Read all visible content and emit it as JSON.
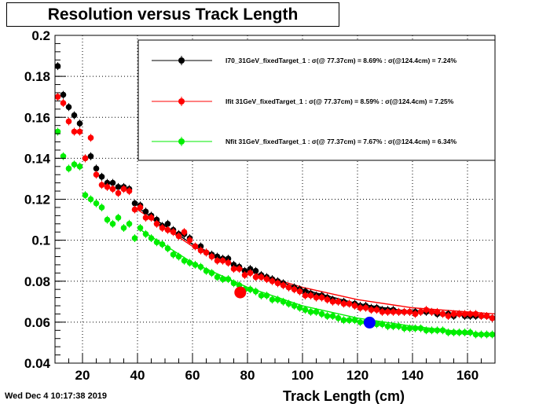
{
  "page": {
    "timestamp": "Wed Dec  4 10:17:38 2019"
  },
  "chart_data": {
    "type": "scatter",
    "title": "Resolution versus Track Length",
    "xlabel": "Track Length (cm)",
    "ylabel": "",
    "xlim": [
      10,
      170
    ],
    "ylim": [
      0.04,
      0.2
    ],
    "xticks": [
      20,
      40,
      60,
      80,
      100,
      120,
      140,
      160
    ],
    "yticks": [
      0.04,
      0.06,
      0.08,
      0.1,
      0.12,
      0.14,
      0.16,
      0.18,
      0.2
    ],
    "grid": true,
    "legend_position": "top-right",
    "series": [
      {
        "name": "I70_31GeV_fixedTarget_1 : σ(@ 77.37cm) =  8.69% : σ(@124.4cm) =  7.24%",
        "color": "#000000",
        "x": [
          11,
          13,
          15,
          17,
          19,
          21,
          23,
          25,
          27,
          29,
          31,
          33,
          35,
          37,
          39,
          41,
          43,
          45,
          47,
          49,
          51,
          53,
          55,
          57,
          59,
          61,
          63,
          65,
          67,
          69,
          71,
          73,
          75,
          77,
          79,
          81,
          83,
          85,
          87,
          89,
          91,
          93,
          95,
          97,
          99,
          101,
          103,
          105,
          107,
          109,
          111,
          113,
          115,
          117,
          119,
          121,
          123,
          125,
          127,
          129,
          131,
          133,
          135,
          137,
          139,
          141,
          143,
          145,
          147,
          149,
          151,
          153,
          155,
          157,
          159,
          161,
          163,
          165,
          167,
          169
        ],
        "y": [
          0.185,
          0.171,
          0.165,
          0.161,
          0.157,
          0.14,
          0.141,
          0.135,
          0.131,
          0.128,
          0.128,
          0.126,
          0.126,
          0.125,
          0.118,
          0.117,
          0.114,
          0.112,
          0.11,
          0.107,
          0.108,
          0.105,
          0.103,
          0.103,
          0.101,
          0.097,
          0.097,
          0.094,
          0.093,
          0.092,
          0.091,
          0.091,
          0.088,
          0.087,
          0.085,
          0.086,
          0.085,
          0.083,
          0.082,
          0.081,
          0.08,
          0.079,
          0.077,
          0.077,
          0.076,
          0.075,
          0.074,
          0.073,
          0.073,
          0.072,
          0.071,
          0.07,
          0.07,
          0.069,
          0.069,
          0.068,
          0.068,
          0.067,
          0.067,
          0.066,
          0.066,
          0.066,
          0.065,
          0.065,
          0.065,
          0.065,
          0.065,
          0.065,
          0.065,
          0.064,
          0.064,
          0.064,
          0.063,
          0.064,
          0.063,
          0.063,
          0.063,
          0.063,
          0.063,
          0.062
        ]
      },
      {
        "name": "Ifit 31GeV_fixedTarget_1 : σ(@ 77.37cm) =  8.59% : σ(@124.4cm) =  7.25%",
        "color": "#ff0000",
        "x": [
          11,
          13,
          15,
          17,
          19,
          21,
          23,
          25,
          27,
          29,
          31,
          33,
          35,
          37,
          39,
          41,
          43,
          45,
          47,
          49,
          51,
          53,
          55,
          57,
          59,
          61,
          63,
          65,
          67,
          69,
          71,
          73,
          75,
          77,
          79,
          81,
          83,
          85,
          87,
          89,
          91,
          93,
          95,
          97,
          99,
          101,
          103,
          105,
          107,
          109,
          111,
          113,
          115,
          117,
          119,
          121,
          123,
          125,
          127,
          129,
          131,
          133,
          135,
          137,
          139,
          141,
          143,
          145,
          147,
          149,
          151,
          153,
          155,
          157,
          159,
          161,
          163,
          165,
          167,
          169
        ],
        "y": [
          0.17,
          0.167,
          0.158,
          0.153,
          0.153,
          0.14,
          0.15,
          0.132,
          0.127,
          0.126,
          0.125,
          0.123,
          0.125,
          0.124,
          0.115,
          0.116,
          0.111,
          0.111,
          0.108,
          0.106,
          0.105,
          0.104,
          0.102,
          0.104,
          0.1,
          0.097,
          0.095,
          0.094,
          0.092,
          0.09,
          0.09,
          0.089,
          0.086,
          0.086,
          0.083,
          0.084,
          0.082,
          0.082,
          0.081,
          0.08,
          0.079,
          0.078,
          0.077,
          0.076,
          0.075,
          0.073,
          0.073,
          0.072,
          0.072,
          0.071,
          0.07,
          0.07,
          0.069,
          0.069,
          0.068,
          0.067,
          0.067,
          0.066,
          0.066,
          0.065,
          0.065,
          0.065,
          0.065,
          0.065,
          0.065,
          0.064,
          0.065,
          0.066,
          0.065,
          0.065,
          0.064,
          0.063,
          0.064,
          0.064,
          0.064,
          0.064,
          0.064,
          0.063,
          0.063,
          0.062
        ]
      },
      {
        "name": "Nfit 31GeV_fixedTarget_1 : σ(@ 77.37cm) =  7.67% : σ(@124.4cm) =  6.34%",
        "color": "#00ee00",
        "x": [
          11,
          13,
          15,
          17,
          19,
          21,
          23,
          25,
          27,
          29,
          31,
          33,
          35,
          37,
          39,
          41,
          43,
          45,
          47,
          49,
          51,
          53,
          55,
          57,
          59,
          61,
          63,
          65,
          67,
          69,
          71,
          73,
          75,
          77,
          79,
          81,
          83,
          85,
          87,
          89,
          91,
          93,
          95,
          97,
          99,
          101,
          103,
          105,
          107,
          109,
          111,
          113,
          115,
          117,
          119,
          121,
          123,
          125,
          127,
          129,
          131,
          133,
          135,
          137,
          139,
          141,
          143,
          145,
          147,
          149,
          151,
          153,
          155,
          157,
          159,
          161,
          163,
          165,
          167,
          169
        ],
        "y": [
          0.153,
          0.141,
          0.135,
          0.137,
          0.136,
          0.122,
          0.12,
          0.118,
          0.116,
          0.11,
          0.108,
          0.111,
          0.106,
          0.108,
          0.101,
          0.106,
          0.103,
          0.101,
          0.099,
          0.098,
          0.096,
          0.093,
          0.092,
          0.09,
          0.089,
          0.088,
          0.087,
          0.085,
          0.084,
          0.082,
          0.081,
          0.081,
          0.079,
          0.078,
          0.076,
          0.076,
          0.075,
          0.073,
          0.073,
          0.071,
          0.071,
          0.07,
          0.069,
          0.068,
          0.067,
          0.066,
          0.065,
          0.065,
          0.064,
          0.063,
          0.063,
          0.062,
          0.061,
          0.061,
          0.061,
          0.06,
          0.06,
          0.059,
          0.059,
          0.059,
          0.058,
          0.058,
          0.058,
          0.057,
          0.057,
          0.057,
          0.057,
          0.056,
          0.056,
          0.056,
          0.056,
          0.055,
          0.055,
          0.055,
          0.055,
          0.055,
          0.054,
          0.054,
          0.054,
          0.054
        ]
      }
    ],
    "fits": [
      {
        "color": "#000000",
        "x": [
          40,
          60,
          80,
          100,
          120,
          140,
          160,
          170
        ],
        "y": [
          0.116,
          0.098,
          0.085,
          0.076,
          0.069,
          0.065,
          0.063,
          0.062
        ]
      },
      {
        "color": "#ff0000",
        "x": [
          40,
          60,
          80,
          100,
          120,
          140,
          160,
          170
        ],
        "y": [
          0.115,
          0.097,
          0.085,
          0.077,
          0.071,
          0.067,
          0.065,
          0.064
        ]
      },
      {
        "color": "#00ee00",
        "x": [
          40,
          60,
          80,
          100,
          120,
          140,
          160,
          170
        ],
        "y": [
          0.106,
          0.089,
          0.077,
          0.068,
          0.062,
          0.058,
          0.055,
          0.054
        ]
      }
    ],
    "markers": [
      {
        "x": 77.37,
        "y": 0.0745,
        "color": "#ff0000"
      },
      {
        "x": 124.4,
        "y": 0.0598,
        "color": "#0000ff"
      }
    ]
  }
}
